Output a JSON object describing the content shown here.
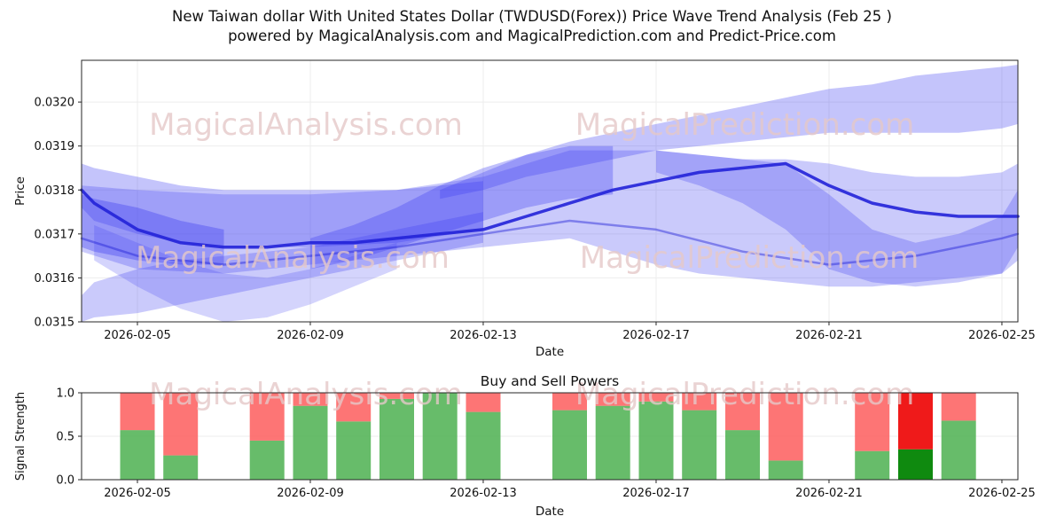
{
  "title": {
    "line1": "New Taiwan dollar With United States Dollar (TWDUSD(Forex)) Price Wave Trend Analysis (Feb 25 )",
    "line2": "powered by MagicalAnalysis.com and MagicalPrediction.com and Predict-Price.com"
  },
  "watermarks": [
    "MagicalAnalysis.com",
    "MagicalPrediction.com"
  ],
  "colors": {
    "band": "#3a3af2",
    "trend_line": "#2222d8",
    "buy": "#4cb050",
    "sell": "#fd5d5d",
    "buy_highlight": "#0f8a0f",
    "sell_highlight": "#ef1a1a",
    "watermark": "#e5c8c8",
    "grid": "#ededed",
    "axis": "#262626",
    "text": "#111111"
  },
  "chart_data": [
    {
      "type": "area",
      "name": "price-wave-trend",
      "ylabel": "Price",
      "xlabel": "Date",
      "ylim": [
        0.0315,
        0.032095
      ],
      "y_ticks": [
        0.0315,
        0.0316,
        0.0317,
        0.0318,
        0.0319,
        0.032
      ],
      "x_domain_days": [
        0.708,
        22.37
      ],
      "day0_date": "2026-02-03",
      "tick_days": [
        2,
        6,
        10,
        14,
        18,
        22
      ],
      "x_ticks": [
        "2026-02-05",
        "2026-02-09",
        "2026-02-13",
        "2026-02-17",
        "2026-02-21",
        "2026-02-25"
      ],
      "bands": [
        {
          "name": "upper-fan",
          "alpha": 0.3,
          "days": [
            9,
            10,
            11,
            12,
            13,
            14,
            15,
            16,
            17,
            18,
            19,
            20,
            21,
            22,
            22.37
          ],
          "lower": [
            0.03178,
            0.0318,
            0.03183,
            0.03185,
            0.03187,
            0.03189,
            0.0319,
            0.03191,
            0.03192,
            0.03193,
            0.03193,
            0.03193,
            0.03193,
            0.03194,
            0.03195
          ],
          "upper": [
            0.0318,
            0.03184,
            0.03188,
            0.03191,
            0.03193,
            0.03195,
            0.03197,
            0.03199,
            0.03201,
            0.03203,
            0.03204,
            0.03206,
            0.03207,
            0.03208,
            0.032085
          ]
        },
        {
          "name": "main-band",
          "alpha": 0.27,
          "days": [
            0.708,
            2,
            4,
            6,
            8,
            10,
            11,
            12,
            13,
            14,
            15,
            16,
            17,
            18,
            19,
            20,
            21,
            22,
            22.37
          ],
          "upper": [
            0.03181,
            0.0318,
            0.03179,
            0.03179,
            0.0318,
            0.03183,
            0.03186,
            0.03189,
            0.03189,
            0.03189,
            0.03188,
            0.03187,
            0.03187,
            0.03186,
            0.03184,
            0.03183,
            0.03183,
            0.03184,
            0.03186
          ],
          "lower": [
            0.03166,
            0.03162,
            0.03161,
            0.03163,
            0.03165,
            0.03167,
            0.03168,
            0.03169,
            0.03166,
            0.03163,
            0.03161,
            0.0316,
            0.03159,
            0.03158,
            0.03158,
            0.03159,
            0.0316,
            0.03161,
            0.03164
          ]
        },
        {
          "name": "left-top-band",
          "alpha": 0.3,
          "days": [
            0.708,
            1,
            2,
            3,
            4,
            5,
            6,
            8,
            10
          ],
          "upper": [
            0.03186,
            0.03185,
            0.03183,
            0.03181,
            0.0318,
            0.0318,
            0.0318,
            0.0318,
            0.03182
          ],
          "lower": [
            0.03176,
            0.03173,
            0.0317,
            0.03168,
            0.03167,
            0.03167,
            0.03167,
            0.03168,
            0.03171
          ]
        },
        {
          "name": "left-rise-band",
          "alpha": 0.27,
          "days": [
            0.708,
            1,
            2,
            3,
            4,
            5,
            6,
            7,
            8,
            9,
            10
          ],
          "lower": [
            0.0315,
            0.03151,
            0.03152,
            0.03154,
            0.03156,
            0.03158,
            0.0316,
            0.03162,
            0.03164,
            0.03166,
            0.03168
          ],
          "upper": [
            0.03156,
            0.03159,
            0.03162,
            0.03164,
            0.03165,
            0.03166,
            0.03167,
            0.03169,
            0.03171,
            0.03173,
            0.03175
          ]
        },
        {
          "name": "left-dip-band",
          "alpha": 0.22,
          "days": [
            1,
            2,
            3,
            4,
            5,
            6,
            7,
            8
          ],
          "lower": [
            0.03164,
            0.03158,
            0.03153,
            0.0315,
            0.03151,
            0.03154,
            0.03158,
            0.03162
          ],
          "upper": [
            0.03172,
            0.03168,
            0.03164,
            0.03161,
            0.0316,
            0.03162,
            0.03165,
            0.03168
          ]
        },
        {
          "name": "mid-rise-band",
          "alpha": 0.32,
          "days": [
            6,
            7,
            8,
            9,
            10,
            11,
            12,
            13
          ],
          "lower": [
            0.03162,
            0.03164,
            0.03167,
            0.0317,
            0.03173,
            0.03176,
            0.03178,
            0.03179
          ],
          "upper": [
            0.03169,
            0.03172,
            0.03176,
            0.03181,
            0.03185,
            0.03188,
            0.0319,
            0.0319
          ]
        },
        {
          "name": "right-cross-band",
          "alpha": 0.27,
          "days": [
            14,
            15,
            16,
            17,
            18,
            19,
            20,
            21,
            22,
            22.37
          ],
          "upper": [
            0.03189,
            0.03188,
            0.03187,
            0.03186,
            0.03179,
            0.03171,
            0.03168,
            0.0317,
            0.03174,
            0.0318
          ],
          "lower": [
            0.03184,
            0.03181,
            0.03177,
            0.03171,
            0.03162,
            0.03159,
            0.03158,
            0.03159,
            0.03161,
            0.03167
          ]
        },
        {
          "name": "left-knot-band",
          "alpha": 0.35,
          "days": [
            0.708,
            1,
            2,
            3,
            4
          ],
          "upper": [
            0.03179,
            0.03178,
            0.03176,
            0.03173,
            0.03171
          ],
          "lower": [
            0.03167,
            0.03166,
            0.03164,
            0.03163,
            0.03163
          ]
        }
      ],
      "lines": [
        {
          "name": "primary-trend",
          "width": 3.5,
          "opacity": 0.9,
          "days": [
            0.708,
            1,
            2,
            3,
            4,
            5,
            6,
            7,
            8,
            9,
            10,
            11,
            12,
            13,
            14,
            15,
            16,
            17,
            18,
            19,
            20,
            21,
            22,
            22.37
          ],
          "y": [
            0.0318,
            0.03177,
            0.03171,
            0.03168,
            0.03167,
            0.03167,
            0.03168,
            0.03168,
            0.03169,
            0.0317,
            0.03171,
            0.03174,
            0.03177,
            0.0318,
            0.03182,
            0.03184,
            0.03185,
            0.03186,
            0.03181,
            0.03177,
            0.03175,
            0.03174,
            0.03174,
            0.03174
          ]
        },
        {
          "name": "secondary-trend",
          "width": 2.5,
          "opacity": 0.45,
          "days": [
            0.708,
            2,
            4,
            6,
            8,
            10,
            12,
            14,
            16,
            18,
            20,
            22,
            22.37
          ],
          "y": [
            0.03169,
            0.03165,
            0.03163,
            0.03165,
            0.03167,
            0.0317,
            0.03173,
            0.03171,
            0.03166,
            0.03163,
            0.03165,
            0.03169,
            0.0317
          ]
        }
      ]
    },
    {
      "type": "bar",
      "name": "buy-sell-powers",
      "title": "Buy and Sell Powers",
      "ylabel": "Signal Strength",
      "xlabel": "Date",
      "ylim": [
        0,
        1.0
      ],
      "y_ticks": [
        0,
        0.5,
        1.0
      ],
      "tick_days": [
        2,
        6,
        10,
        14,
        18,
        22
      ],
      "x_ticks": [
        "2026-02-05",
        "2026-02-09",
        "2026-02-13",
        "2026-02-17",
        "2026-02-21",
        "2026-02-25"
      ],
      "bar_width_days": 0.8,
      "bars": [
        {
          "date": "2026-02-05",
          "day": 2,
          "buy": 0.57,
          "sell": 0.43,
          "highlight": false
        },
        {
          "date": "2026-02-06",
          "day": 3,
          "buy": 0.28,
          "sell": 0.72,
          "highlight": false
        },
        {
          "date": "2026-02-08",
          "day": 5,
          "buy": 0.45,
          "sell": 0.55,
          "highlight": false
        },
        {
          "date": "2026-02-09",
          "day": 6,
          "buy": 0.85,
          "sell": 0.15,
          "highlight": false
        },
        {
          "date": "2026-02-10",
          "day": 7,
          "buy": 0.67,
          "sell": 0.33,
          "highlight": false
        },
        {
          "date": "2026-02-11",
          "day": 8,
          "buy": 0.93,
          "sell": 0.07,
          "highlight": false
        },
        {
          "date": "2026-02-12",
          "day": 9,
          "buy": 1.0,
          "sell": 0.0,
          "highlight": false
        },
        {
          "date": "2026-02-13",
          "day": 10,
          "buy": 0.78,
          "sell": 0.22,
          "highlight": false
        },
        {
          "date": "2026-02-15",
          "day": 12,
          "buy": 0.8,
          "sell": 0.2,
          "highlight": false
        },
        {
          "date": "2026-02-16",
          "day": 13,
          "buy": 0.85,
          "sell": 0.15,
          "highlight": false
        },
        {
          "date": "2026-02-17",
          "day": 14,
          "buy": 0.9,
          "sell": 0.1,
          "highlight": false
        },
        {
          "date": "2026-02-18",
          "day": 15,
          "buy": 0.8,
          "sell": 0.2,
          "highlight": false
        },
        {
          "date": "2026-02-19",
          "day": 16,
          "buy": 0.57,
          "sell": 0.43,
          "highlight": false
        },
        {
          "date": "2026-02-20",
          "day": 17,
          "buy": 0.22,
          "sell": 0.78,
          "highlight": false
        },
        {
          "date": "2026-02-22",
          "day": 19,
          "buy": 0.33,
          "sell": 0.67,
          "highlight": false
        },
        {
          "date": "2026-02-23",
          "day": 20,
          "buy": 0.35,
          "sell": 0.65,
          "highlight": true
        },
        {
          "date": "2026-02-24",
          "day": 21,
          "buy": 0.68,
          "sell": 0.32,
          "highlight": false
        }
      ]
    }
  ]
}
